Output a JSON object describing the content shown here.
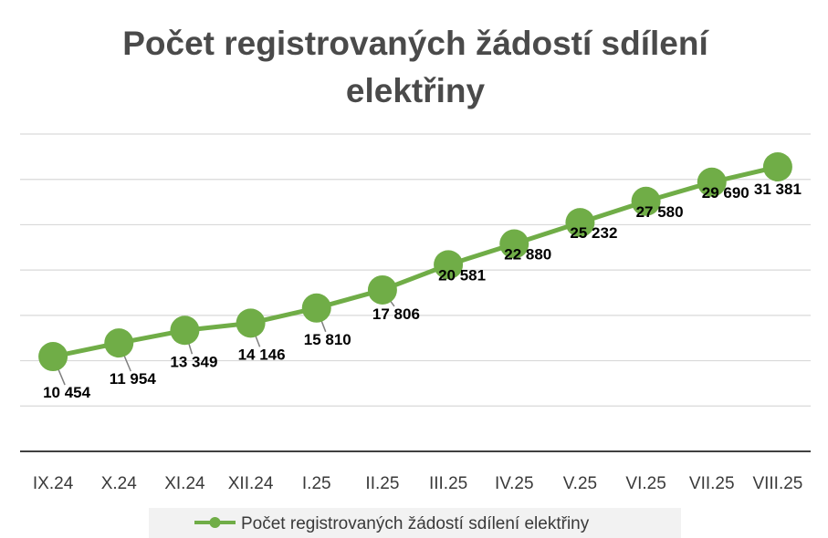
{
  "chart_data": {
    "type": "line",
    "title_lines": [
      "Počet registrovaných žádostí sdílení",
      "elektřiny"
    ],
    "categories": [
      "IX.24",
      "X.24",
      "XI.24",
      "XII.24",
      "I.25",
      "II.25",
      "III.25",
      "IV.25",
      "V.25",
      "VI.25",
      "VII.25",
      "VIII.25"
    ],
    "series": [
      {
        "name": "Počet registrovaných žádostí sdílení elektřiny",
        "values": [
          10454,
          11954,
          13349,
          14146,
          15810,
          17806,
          20581,
          22880,
          25232,
          27580,
          29690,
          31381
        ],
        "labels": [
          "10 454",
          "11 954",
          "13 349",
          "14 146",
          "15 810",
          "17 806",
          "20 581",
          "22 880",
          "25 232",
          "27 580",
          "29 690",
          "31 381"
        ],
        "color": "#70ad47"
      }
    ],
    "ylim": [
      0,
      35000
    ],
    "grid": true,
    "legend_position": "bottom",
    "colors": {
      "series": "#70ad47",
      "gridline": "#d9d9d9",
      "axis": "#404040",
      "leader": "#7f7f7f"
    }
  }
}
